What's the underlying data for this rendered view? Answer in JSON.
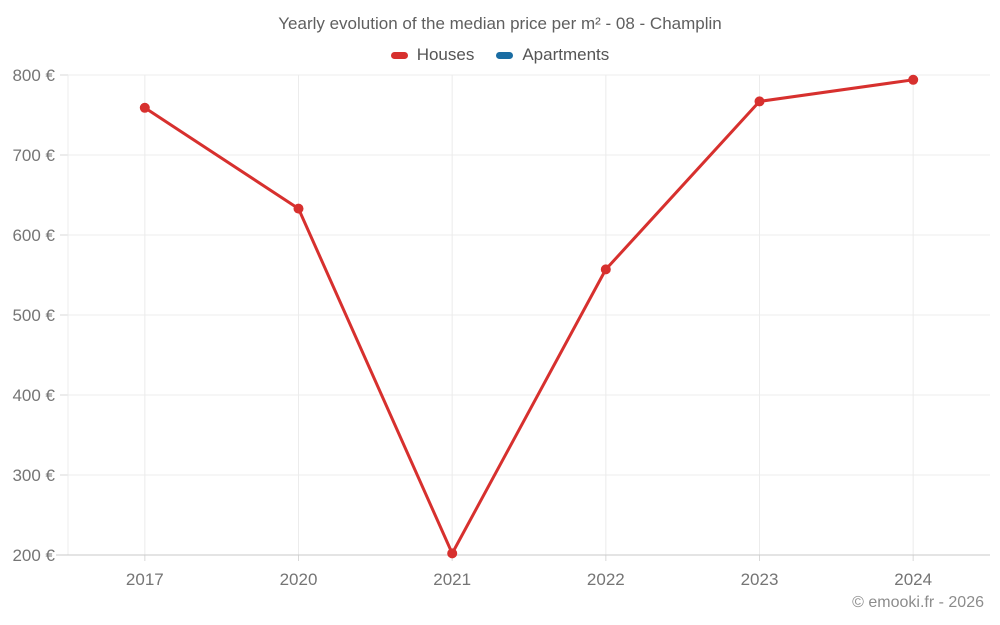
{
  "header": {
    "title": "Yearly evolution of the median price per m² - 08 - Champlin"
  },
  "footer": {
    "credit": "© emooki.fr - 2026"
  },
  "theme": {
    "bg": "#ffffff",
    "grid": "#ececec",
    "axis_line": "#c9c9c9",
    "tick": "#d9d9d9",
    "axis_text": "#757575",
    "title_text": "#5f5f5f",
    "legend_text": "#555555",
    "footer_text": "#8c8c8c"
  },
  "chart_data": {
    "type": "line",
    "title": "Yearly evolution of the median price per m² - 08 - Champlin",
    "categories": [
      "2017",
      "2020",
      "2021",
      "2022",
      "2023",
      "2024"
    ],
    "series": [
      {
        "name": "Houses",
        "color": "#d7302e",
        "values": [
          759,
          633,
          202,
          557,
          767,
          794
        ]
      },
      {
        "name": "Apartments",
        "color": "#1a6da3",
        "values": []
      }
    ],
    "xlabel": "",
    "ylabel": "",
    "ylim": [
      200,
      800
    ],
    "ytick_values": [
      200,
      300,
      400,
      500,
      600,
      700,
      800
    ],
    "ytick_labels": [
      "200 €",
      "300 €",
      "400 €",
      "500 €",
      "600 €",
      "700 €",
      "800 €"
    ],
    "grid": true,
    "legend_position": "top-center",
    "marker": "circle",
    "line_width": 3
  }
}
